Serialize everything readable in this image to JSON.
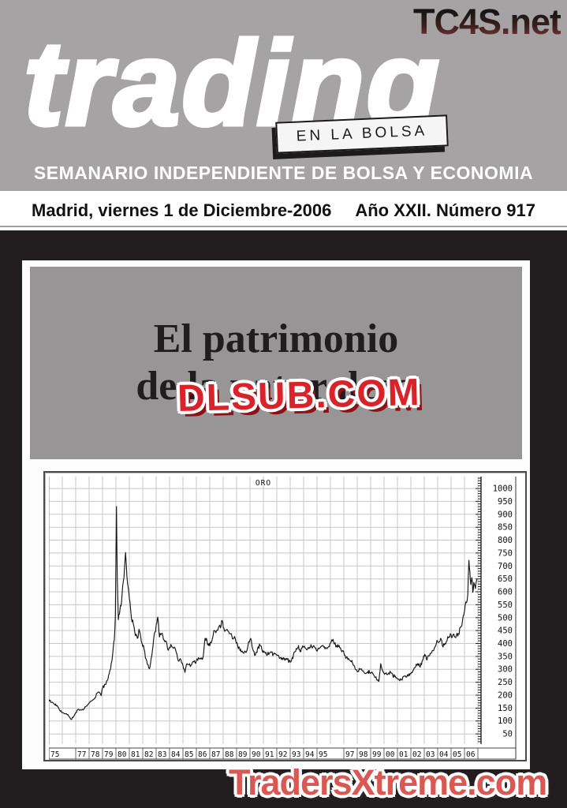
{
  "watermarks": {
    "top_right": "TC4S.net",
    "center": "DLSUB.COM",
    "bottom": "TradersXtreme.com"
  },
  "masthead": {
    "logo": "trading",
    "tagline": "EN LA BOLSA",
    "subtitle": "SEMANARIO INDEPENDIENTE DE BOLSA Y ECONOMIA",
    "dateline": "Madrid, viernes 1 de Diciembre-2006",
    "issue": "Año XXII. Número 917"
  },
  "cover": {
    "headline_line1": "El patrimonio",
    "headline_line2": "de la naturaleza"
  },
  "colors": {
    "header_gray": "#a5a3a4",
    "headline_gray": "#989596",
    "frame_black": "#221e1f",
    "accent_red": "#d8232a",
    "watermark_salmon": "#d95853",
    "grid": "#c7c7c7",
    "chart_line": "#161616",
    "axis_ink": "#222222"
  },
  "chart_data": {
    "type": "line",
    "title": "ORO",
    "xlabel": "",
    "ylabel": "",
    "grid": true,
    "axis_side": "right",
    "x_range": [
      1975,
      2007
    ],
    "y_range": [
      0,
      1050
    ],
    "y_ticks": [
      1000,
      950,
      900,
      850,
      800,
      750,
      700,
      650,
      600,
      550,
      500,
      450,
      400,
      350,
      300,
      250,
      200,
      150,
      100,
      50
    ],
    "x_ticks": [
      1975,
      1977,
      1978,
      1979,
      1980,
      1981,
      1982,
      1983,
      1984,
      1985,
      1986,
      1987,
      1988,
      1989,
      1990,
      1991,
      1992,
      1993,
      1994,
      1995,
      1997,
      1998,
      1999,
      2000,
      2001,
      2002,
      2003,
      2004,
      2005,
      2006
    ],
    "x_labels": [
      "75",
      "77",
      "78",
      "79",
      "80",
      "81",
      "82",
      "83",
      "84",
      "85",
      "86",
      "87",
      "88",
      "89",
      "90",
      "91",
      "92",
      "93",
      "94",
      "95",
      "97",
      "98",
      "99",
      "00",
      "01",
      "02",
      "03",
      "04",
      "05",
      "06"
    ],
    "series": [
      {
        "name": "ORO",
        "points": [
          [
            1975.0,
            183
          ],
          [
            1975.2,
            172
          ],
          [
            1975.4,
            165
          ],
          [
            1975.6,
            160
          ],
          [
            1975.8,
            142
          ],
          [
            1976.0,
            132
          ],
          [
            1976.2,
            128
          ],
          [
            1976.45,
            122
          ],
          [
            1976.65,
            106
          ],
          [
            1976.85,
            118
          ],
          [
            1977.0,
            132
          ],
          [
            1977.2,
            146
          ],
          [
            1977.4,
            143
          ],
          [
            1977.6,
            145
          ],
          [
            1977.8,
            158
          ],
          [
            1978.0,
            170
          ],
          [
            1978.2,
            178
          ],
          [
            1978.4,
            185
          ],
          [
            1978.6,
            208
          ],
          [
            1978.75,
            212
          ],
          [
            1978.9,
            198
          ],
          [
            1979.0,
            228
          ],
          [
            1979.2,
            242
          ],
          [
            1979.4,
            260
          ],
          [
            1979.6,
            300
          ],
          [
            1979.75,
            355
          ],
          [
            1979.88,
            415
          ],
          [
            1979.96,
            512
          ],
          [
            1980.04,
            930
          ],
          [
            1980.1,
            650
          ],
          [
            1980.18,
            492
          ],
          [
            1980.3,
            530
          ],
          [
            1980.42,
            560
          ],
          [
            1980.55,
            640
          ],
          [
            1980.65,
            700
          ],
          [
            1980.72,
            752
          ],
          [
            1980.82,
            660
          ],
          [
            1980.92,
            615
          ],
          [
            1981.05,
            560
          ],
          [
            1981.15,
            500
          ],
          [
            1981.3,
            475
          ],
          [
            1981.45,
            430
          ],
          [
            1981.6,
            420
          ],
          [
            1981.72,
            455
          ],
          [
            1981.85,
            425
          ],
          [
            1981.95,
            400
          ],
          [
            1982.1,
            378
          ],
          [
            1982.25,
            340
          ],
          [
            1982.4,
            318
          ],
          [
            1982.5,
            302
          ],
          [
            1982.62,
            340
          ],
          [
            1982.72,
            372
          ],
          [
            1982.82,
            420
          ],
          [
            1982.92,
            445
          ],
          [
            1983.05,
            478
          ],
          [
            1983.12,
            502
          ],
          [
            1983.25,
            425
          ],
          [
            1983.4,
            438
          ],
          [
            1983.55,
            415
          ],
          [
            1983.7,
            410
          ],
          [
            1983.85,
            380
          ],
          [
            1984.0,
            385
          ],
          [
            1984.15,
            390
          ],
          [
            1984.3,
            382
          ],
          [
            1984.45,
            376
          ],
          [
            1984.6,
            342
          ],
          [
            1984.75,
            338
          ],
          [
            1984.9,
            325
          ],
          [
            1985.05,
            302
          ],
          [
            1985.15,
            288
          ],
          [
            1985.3,
            322
          ],
          [
            1985.45,
            318
          ],
          [
            1985.6,
            315
          ],
          [
            1985.75,
            330
          ],
          [
            1985.9,
            326
          ],
          [
            1986.05,
            340
          ],
          [
            1986.2,
            342
          ],
          [
            1986.35,
            340
          ],
          [
            1986.5,
            346
          ],
          [
            1986.65,
            420
          ],
          [
            1986.8,
            408
          ],
          [
            1986.92,
            392
          ],
          [
            1987.05,
            405
          ],
          [
            1987.2,
            420
          ],
          [
            1987.35,
            450
          ],
          [
            1987.5,
            448
          ],
          [
            1987.65,
            462
          ],
          [
            1987.8,
            460
          ],
          [
            1987.93,
            488
          ],
          [
            1988.05,
            460
          ],
          [
            1988.2,
            452
          ],
          [
            1988.35,
            448
          ],
          [
            1988.5,
            438
          ],
          [
            1988.65,
            428
          ],
          [
            1988.8,
            420
          ],
          [
            1988.93,
            412
          ],
          [
            1989.08,
            392
          ],
          [
            1989.22,
            382
          ],
          [
            1989.38,
            368
          ],
          [
            1989.55,
            362
          ],
          [
            1989.7,
            365
          ],
          [
            1989.85,
            392
          ],
          [
            1989.95,
            405
          ],
          [
            1990.1,
            412
          ],
          [
            1990.25,
            372
          ],
          [
            1990.4,
            355
          ],
          [
            1990.52,
            365
          ],
          [
            1990.62,
            388
          ],
          [
            1990.75,
            392
          ],
          [
            1990.88,
            378
          ],
          [
            1991.0,
            372
          ],
          [
            1991.15,
            362
          ],
          [
            1991.3,
            356
          ],
          [
            1991.45,
            362
          ],
          [
            1991.6,
            366
          ],
          [
            1991.75,
            358
          ],
          [
            1991.9,
            360
          ],
          [
            1992.05,
            355
          ],
          [
            1992.2,
            342
          ],
          [
            1992.35,
            338
          ],
          [
            1992.5,
            345
          ],
          [
            1992.65,
            342
          ],
          [
            1992.8,
            338
          ],
          [
            1992.92,
            333
          ],
          [
            1993.05,
            329
          ],
          [
            1993.2,
            342
          ],
          [
            1993.35,
            368
          ],
          [
            1993.5,
            378
          ],
          [
            1993.62,
            392
          ],
          [
            1993.75,
            368
          ],
          [
            1993.88,
            382
          ],
          [
            1994.0,
            386
          ],
          [
            1994.15,
            382
          ],
          [
            1994.3,
            380
          ],
          [
            1994.45,
            385
          ],
          [
            1994.6,
            388
          ],
          [
            1994.75,
            392
          ],
          [
            1994.9,
            383
          ],
          [
            1995.05,
            376
          ],
          [
            1995.2,
            382
          ],
          [
            1995.35,
            390
          ],
          [
            1995.5,
            386
          ],
          [
            1995.65,
            384
          ],
          [
            1995.8,
            385
          ],
          [
            1995.92,
            388
          ],
          [
            1996.05,
            405
          ],
          [
            1996.15,
            410
          ],
          [
            1996.3,
            398
          ],
          [
            1996.45,
            392
          ],
          [
            1996.6,
            387
          ],
          [
            1996.75,
            383
          ],
          [
            1996.9,
            372
          ],
          [
            1997.05,
            355
          ],
          [
            1997.2,
            348
          ],
          [
            1997.35,
            342
          ],
          [
            1997.5,
            332
          ],
          [
            1997.65,
            324
          ],
          [
            1997.8,
            312
          ],
          [
            1997.92,
            298
          ],
          [
            1998.05,
            292
          ],
          [
            1998.2,
            300
          ],
          [
            1998.35,
            296
          ],
          [
            1998.5,
            288
          ],
          [
            1998.65,
            284
          ],
          [
            1998.8,
            292
          ],
          [
            1998.92,
            288
          ],
          [
            1999.05,
            286
          ],
          [
            1999.2,
            282
          ],
          [
            1999.35,
            268
          ],
          [
            1999.5,
            258
          ],
          [
            1999.62,
            254
          ],
          [
            1999.75,
            322
          ],
          [
            1999.85,
            300
          ],
          [
            1999.95,
            288
          ],
          [
            2000.08,
            284
          ],
          [
            2000.2,
            280
          ],
          [
            2000.35,
            286
          ],
          [
            2000.5,
            288
          ],
          [
            2000.65,
            276
          ],
          [
            2000.8,
            272
          ],
          [
            2000.92,
            268
          ],
          [
            2001.05,
            262
          ],
          [
            2001.18,
            256
          ],
          [
            2001.3,
            260
          ],
          [
            2001.45,
            272
          ],
          [
            2001.6,
            274
          ],
          [
            2001.75,
            279
          ],
          [
            2001.9,
            276
          ],
          [
            2002.05,
            288
          ],
          [
            2002.2,
            298
          ],
          [
            2002.35,
            308
          ],
          [
            2002.5,
            322
          ],
          [
            2002.65,
            312
          ],
          [
            2002.8,
            318
          ],
          [
            2002.92,
            342
          ],
          [
            2003.08,
            352
          ],
          [
            2003.2,
            336
          ],
          [
            2003.35,
            352
          ],
          [
            2003.5,
            362
          ],
          [
            2003.65,
            372
          ],
          [
            2003.8,
            388
          ],
          [
            2003.95,
            412
          ],
          [
            2004.1,
            406
          ],
          [
            2004.22,
            420
          ],
          [
            2004.35,
            392
          ],
          [
            2004.5,
            394
          ],
          [
            2004.65,
            408
          ],
          [
            2004.8,
            422
          ],
          [
            2004.95,
            438
          ],
          [
            2005.1,
            426
          ],
          [
            2005.25,
            428
          ],
          [
            2005.4,
            432
          ],
          [
            2005.55,
            438
          ],
          [
            2005.7,
            462
          ],
          [
            2005.85,
            488
          ],
          [
            2005.95,
            512
          ],
          [
            2006.05,
            548
          ],
          [
            2006.15,
            558
          ],
          [
            2006.25,
            592
          ],
          [
            2006.33,
            722
          ],
          [
            2006.4,
            680
          ],
          [
            2006.47,
            628
          ],
          [
            2006.55,
            655
          ],
          [
            2006.62,
            598
          ],
          [
            2006.7,
            636
          ],
          [
            2006.78,
            622
          ],
          [
            2006.85,
            630
          ],
          [
            2006.92,
            648
          ]
        ]
      }
    ]
  }
}
